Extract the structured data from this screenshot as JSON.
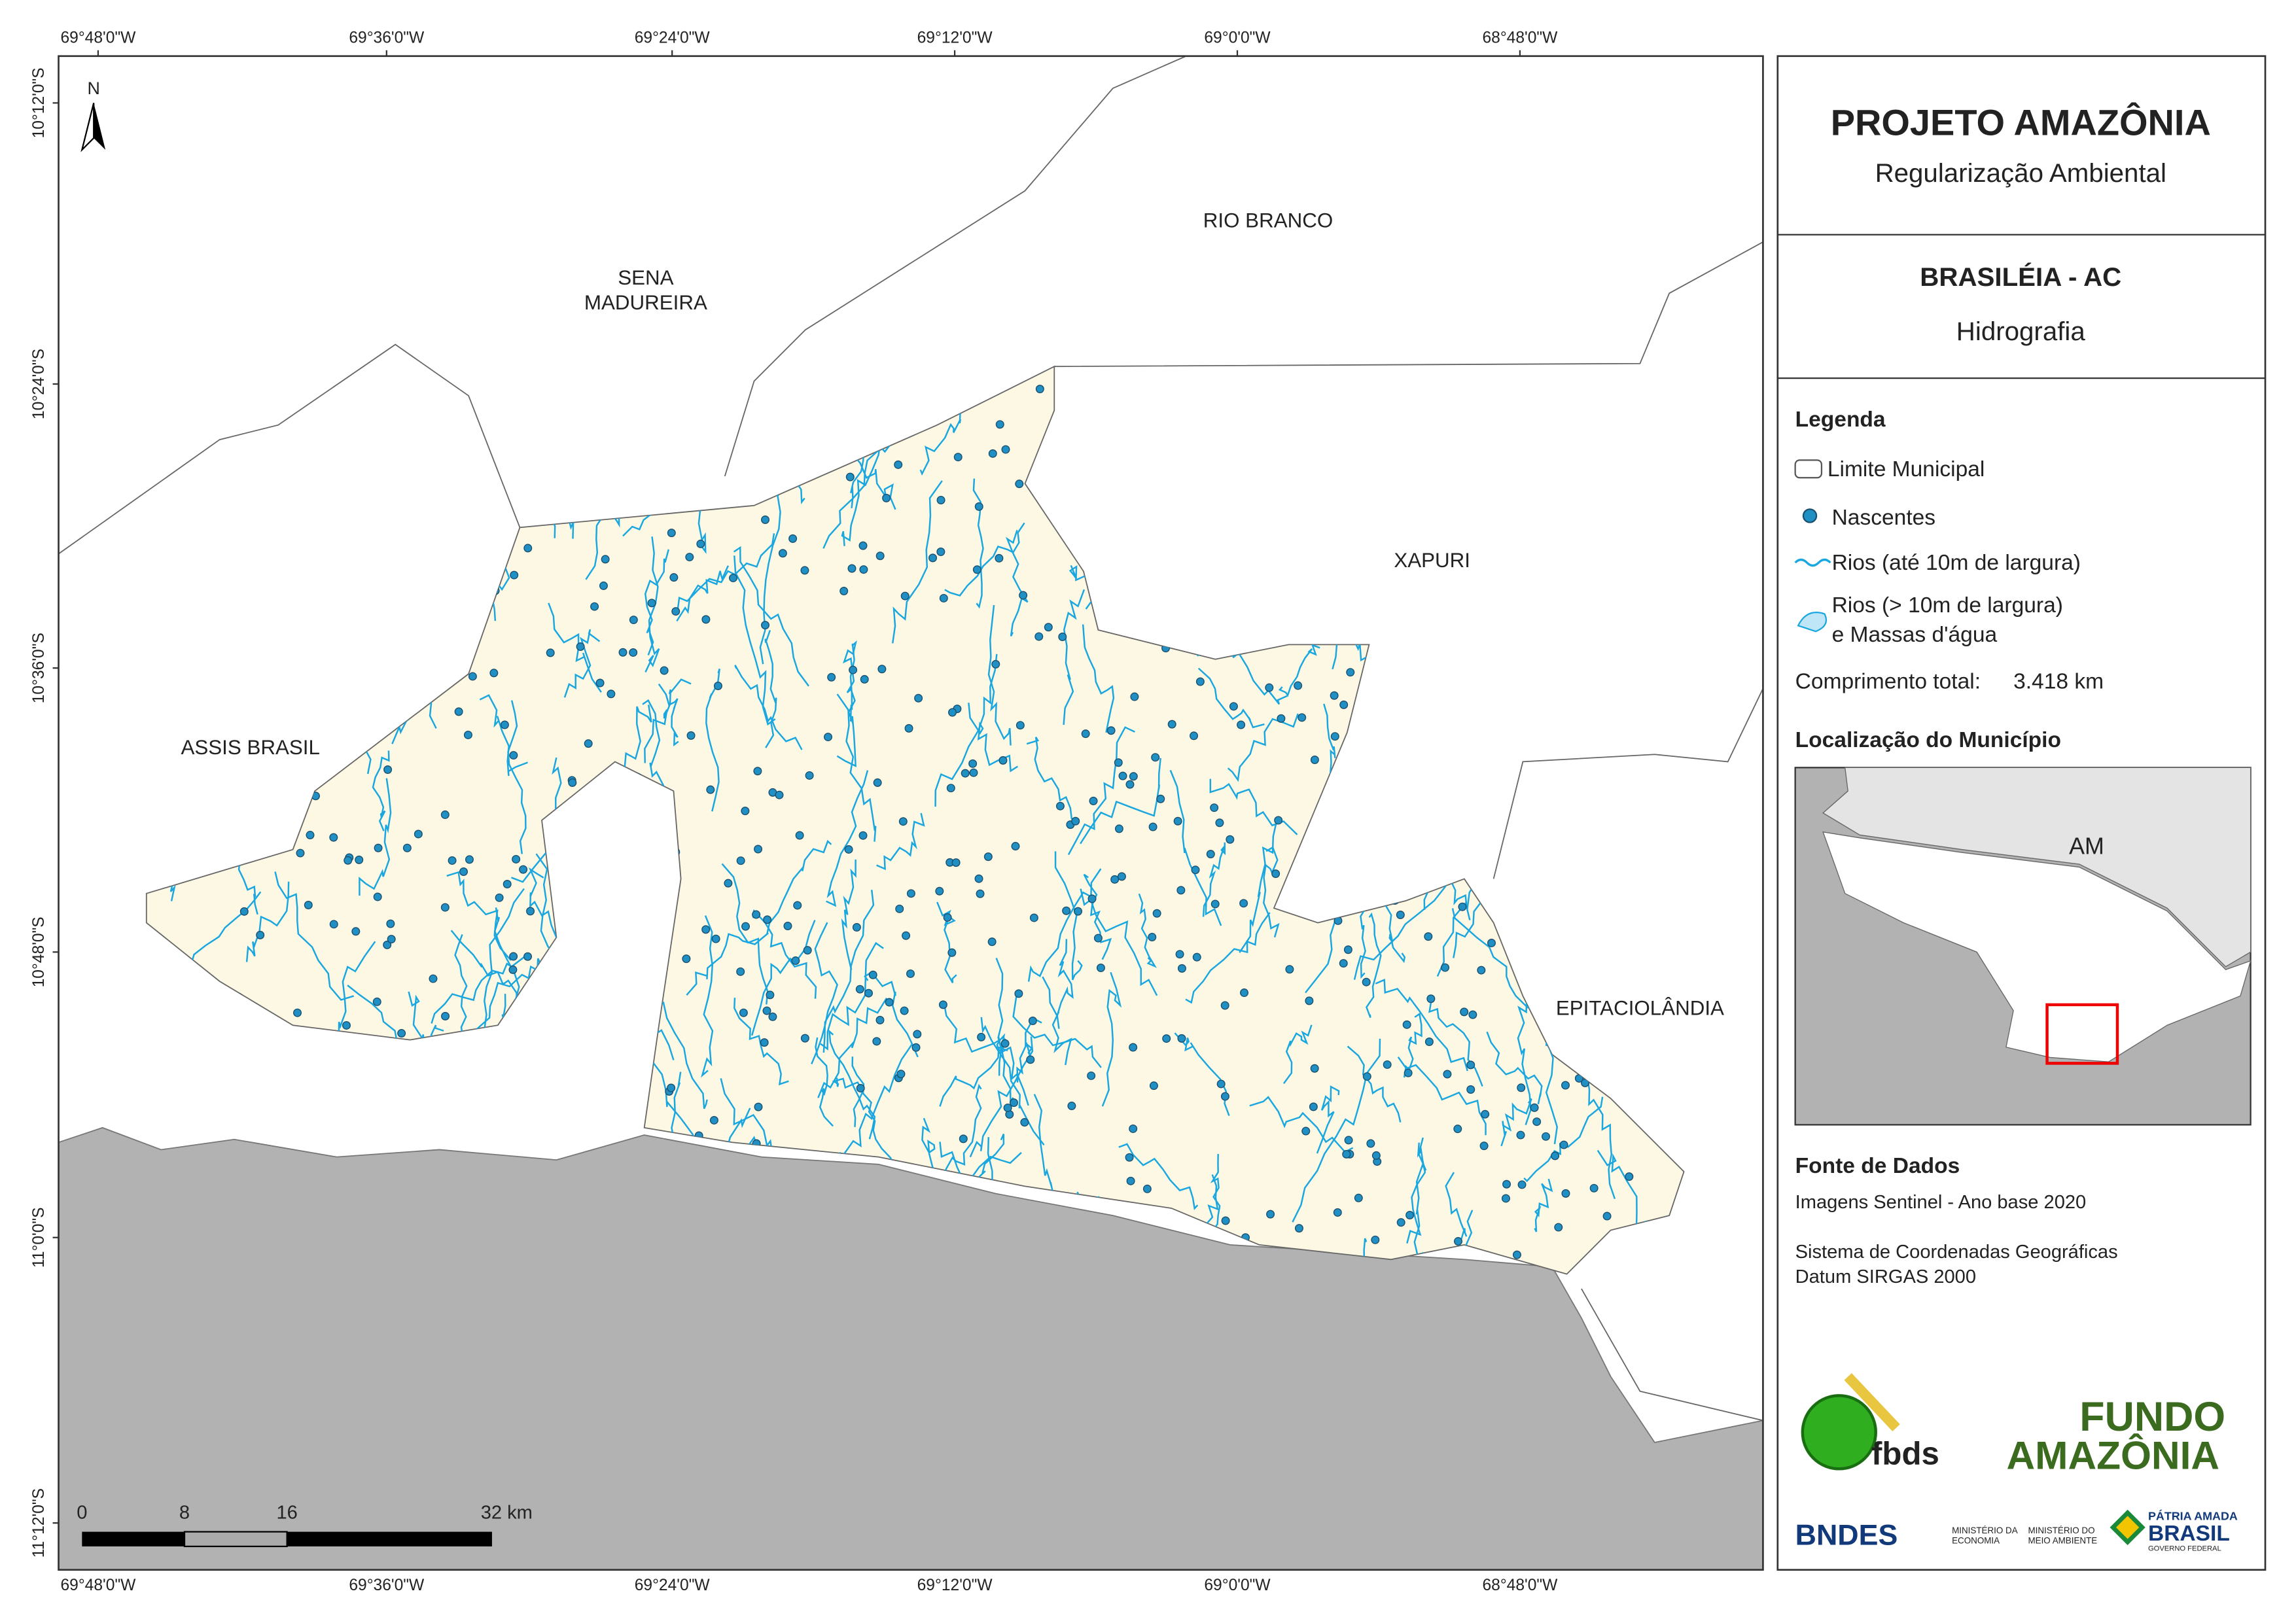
{
  "header": {
    "title": "PROJETO AMAZÔNIA",
    "subtitle": "Regularização Ambiental"
  },
  "municipality": {
    "name": "BRASILÉIA - AC",
    "theme": "Hidrografia"
  },
  "legend": {
    "title": "Legenda",
    "items": [
      "Limite Municipal",
      "Nascentes",
      "Rios (até 10m de largura)"
    ],
    "water_lines": [
      "Rios (> 10m de largura)",
      "e Massas d'água"
    ],
    "total_label": "Comprimento total:",
    "total_value": "3.418 km"
  },
  "location": {
    "title": "Localização do Município",
    "label": "AM"
  },
  "sources": {
    "title": "Fonte de Dados",
    "lines": [
      "Imagens Sentinel - Ano base 2020",
      "Sistema de Coordenadas Geográficas",
      "Datum SIRGAS 2000"
    ]
  },
  "map": {
    "north": "N",
    "longitudes": [
      "69°48'0\"W",
      "69°36'0\"W",
      "69°24'0\"W",
      "69°12'0\"W",
      "69°0'0\"W",
      "68°48'0\"W"
    ],
    "latitudes": [
      "10°12'0\"S",
      "10°24'0\"S",
      "10°36'0\"S",
      "10°48'0\"S",
      "11°0'0\"S",
      "11°12'0\"S"
    ],
    "places": [
      "RIO BRANCO",
      "SENA",
      "MADUREIRA",
      "XAPURI",
      "ASSIS BRASIL",
      "EPITACIOLÂNDIA"
    ],
    "scale": [
      "0",
      "8",
      "16",
      "32 km"
    ]
  },
  "logos": {
    "fbds": "fbds",
    "fundo": "FUNDO",
    "amazonia": "AMAZÔNIA",
    "bndes": "BNDES",
    "ministry_economy": [
      "MINISTÉRIO DA",
      "ECONOMIA"
    ],
    "ministry_env": [
      "MINISTÉRIO DO",
      "MEIO AMBIENTE"
    ],
    "patria": "PÁTRIA AMADA",
    "brasil": "BRASIL",
    "gov": "GOVERNO FEDERAL"
  }
}
